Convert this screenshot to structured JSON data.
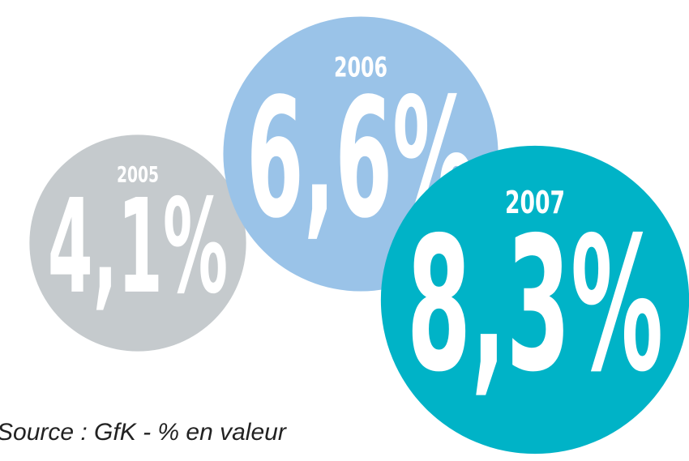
{
  "chart_data": {
    "type": "bubble",
    "categories": [
      "2005",
      "2006",
      "2007"
    ],
    "values": [
      4.1,
      6.6,
      8.3
    ],
    "value_labels": [
      "4,1%",
      "6,6%",
      "8,3%"
    ],
    "colors": [
      "#c5cacd",
      "#9ac3e8",
      "#00b3c7"
    ],
    "source": "Source : GfK - % en valeur"
  }
}
